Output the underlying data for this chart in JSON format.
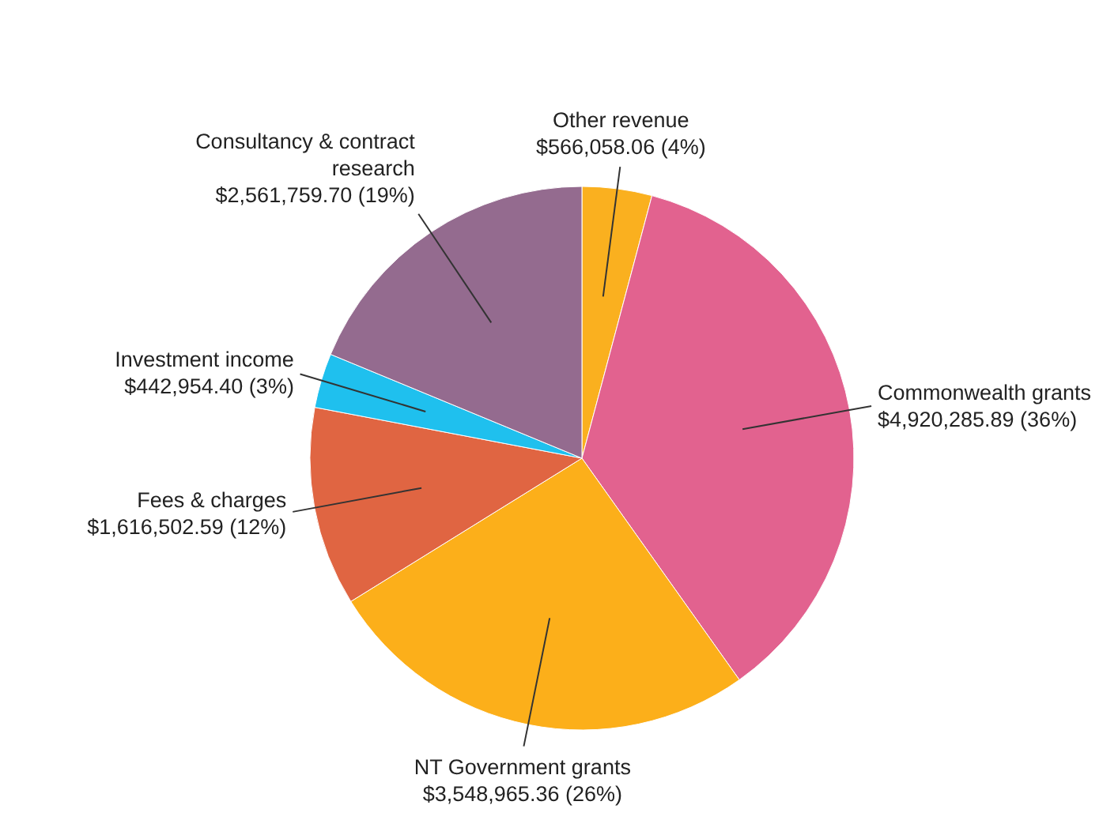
{
  "chart_data": {
    "type": "pie",
    "categories": [
      "Other revenue",
      "Commonwealth grants",
      "NT Government grants",
      "Fees & charges",
      "Investment income",
      "Consultancy & contract research"
    ],
    "values": [
      566058.06,
      4920285.89,
      3548965.36,
      1616502.59,
      442954.4,
      2561759.7
    ],
    "value_labels": [
      "$566,058.06 (4%)",
      "$4,920,285.89 (36%)",
      "$3,548,965.36 (26%)",
      "$1,616,502.59 (12%)",
      "$442,954.40 (3%)",
      "$2,561,759.70 (19%)"
    ],
    "colors": [
      "#fab01f",
      "#e2628f",
      "#fcaf1a",
      "#e06542",
      "#1fc0ee",
      "#946b8f"
    ],
    "legend": false
  }
}
